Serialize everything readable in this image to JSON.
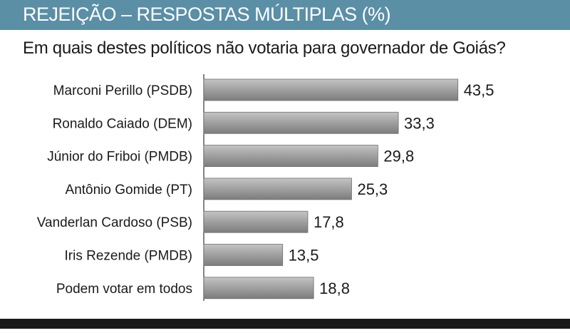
{
  "header": {
    "title": "REJEIÇÃO – RESPOSTAS MÚLTIPLAS (%)"
  },
  "subtitle": "Em quais destes políticos não votaria para governador de Goiás?",
  "colors": {
    "header_bg": "#5a8fa6",
    "bar": "#a3a3a3",
    "axis": "#333333"
  },
  "chart_data": {
    "type": "bar",
    "orientation": "horizontal",
    "title": "REJEIÇÃO – RESPOSTAS MÚLTIPLAS (%)",
    "subtitle": "Em quais destes políticos não votaria para governador de Goiás?",
    "categories": [
      "Marconi Perillo (PSDB)",
      "Ronaldo Caiado (DEM)",
      "Júnior do Friboi (PMDB)",
      "Antônio Gomide (PT)",
      "Vanderlan Cardoso (PSB)",
      "Iris Rezende (PMDB)",
      "Podem votar em todos"
    ],
    "values": [
      43.5,
      33.3,
      29.8,
      25.3,
      17.8,
      13.5,
      18.8
    ],
    "value_labels": [
      "43,5",
      "33,3",
      "29,8",
      "25,3",
      "17,8",
      "13,5",
      "18,8"
    ],
    "xlim": [
      0,
      50
    ],
    "grid": false,
    "legend": "none"
  }
}
